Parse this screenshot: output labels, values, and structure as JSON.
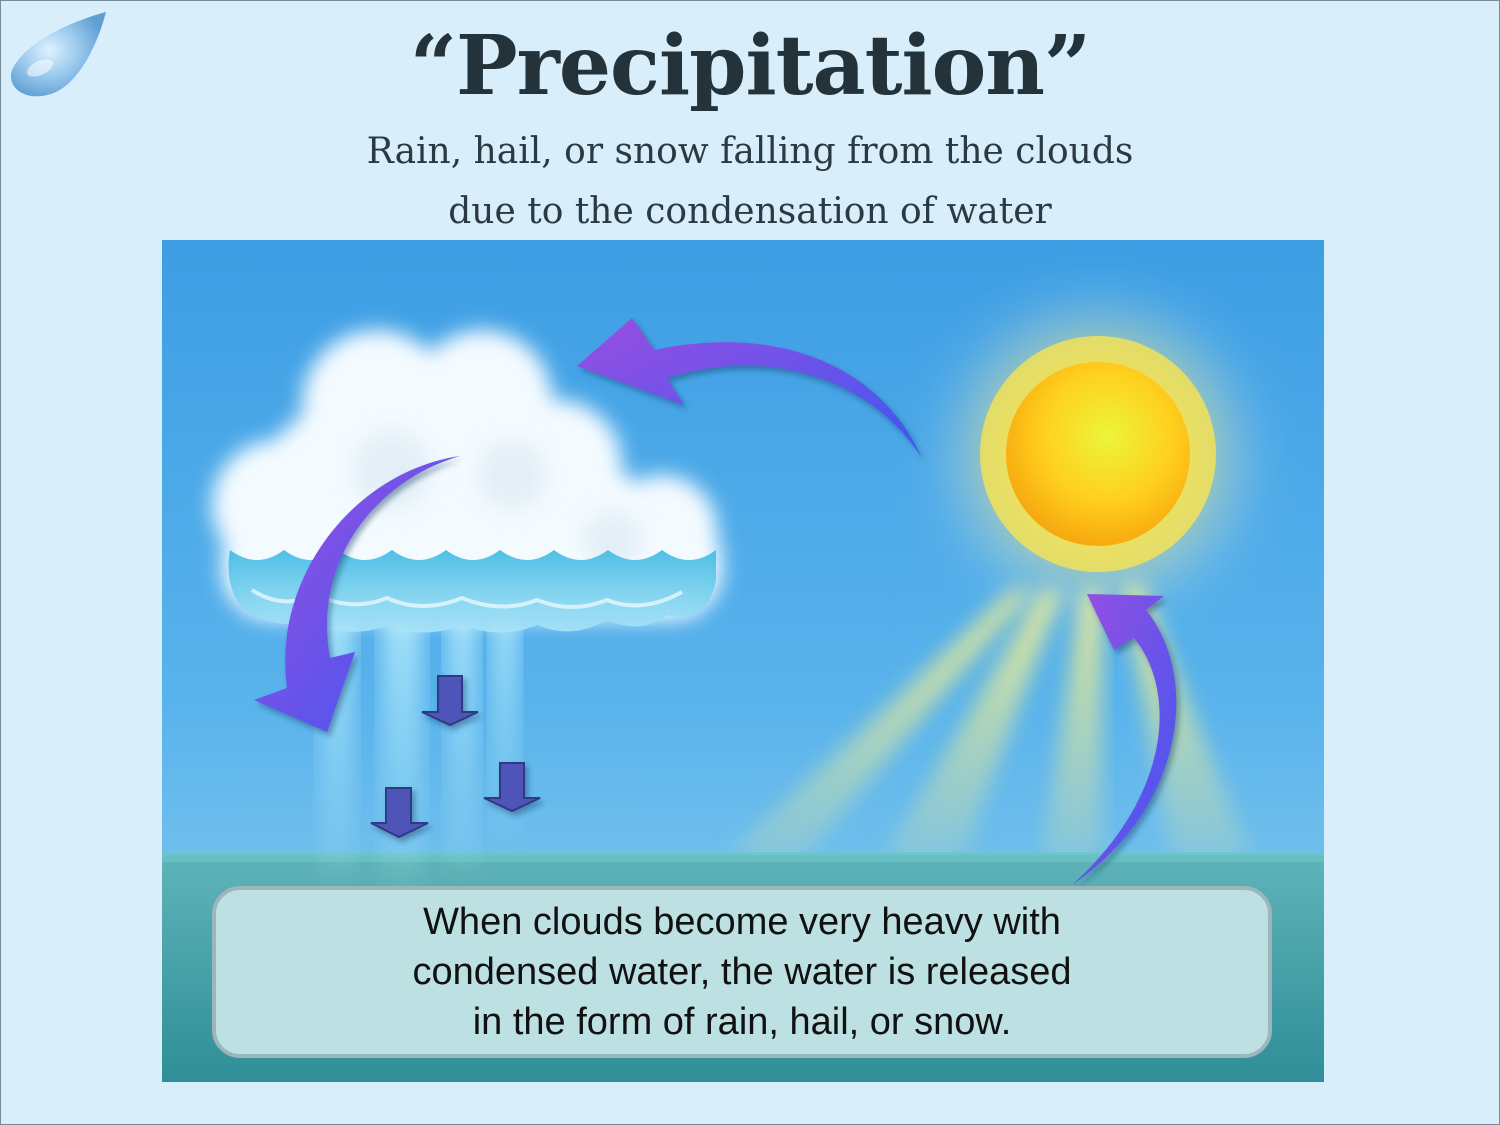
{
  "slide": {
    "title": "“Precipitation”",
    "subtitle_lines": [
      "Rain, hail, or snow falling from the clouds",
      "due to the condensation of water"
    ],
    "caption_lines": [
      "When clouds become very heavy with",
      "condensed water, the water is released",
      "in the form of rain, hail, or snow."
    ]
  },
  "colors": {
    "background": "#d9eefb",
    "title_text": "#243239",
    "sky_top": "#3d9ee4",
    "sea": "#3a9ba3",
    "arrow": "#7b4ee6",
    "sun": "#ffd21f",
    "caption_box": "#bde1e3"
  },
  "icons": [
    "water-drop-icon",
    "sun-icon",
    "cloud-icon",
    "curved-arrow-icon",
    "down-arrow-icon"
  ]
}
